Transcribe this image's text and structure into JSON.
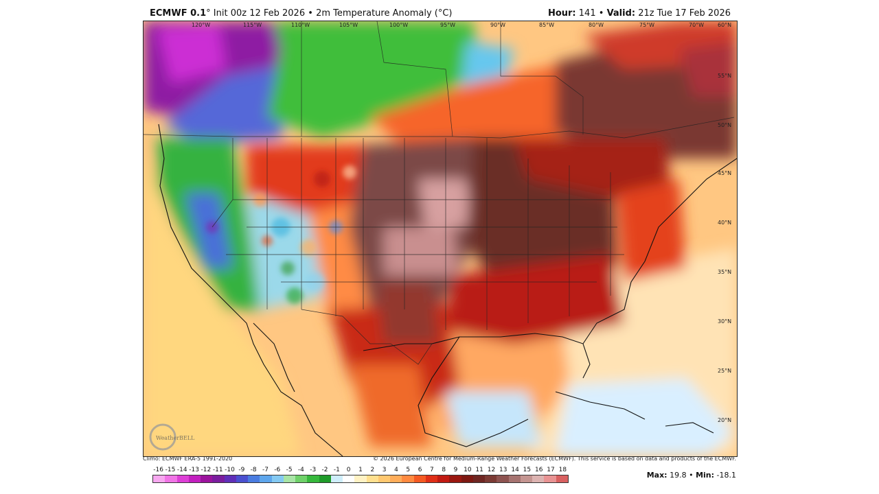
{
  "header": {
    "model": "ECMWF 0.1",
    "degree_symbol": "°",
    "init": "Init 00z 12 Feb 2026",
    "bullet": "•",
    "field": "2m Temperature Anomaly (°C)",
    "hour_label": "Hour:",
    "hour_value": "141",
    "valid_label": "Valid:",
    "valid_value": "21z Tue 17 Feb 2026"
  },
  "map": {
    "lon_labels": [
      "120°W",
      "115°W",
      "110°W",
      "105°W",
      "100°W",
      "95°W",
      "90°W",
      "85°W",
      "80°W",
      "75°W",
      "70°W",
      "60°N"
    ],
    "lat_labels": [
      "55°N",
      "50°N",
      "45°N",
      "40°N",
      "35°N",
      "30°N",
      "25°N",
      "20°N"
    ],
    "logo": "WeatherBELL"
  },
  "footer": {
    "climo": "Climo: ECMWF ERA-5 1991-2020",
    "copyright": "© 2026 European Centre for Medium-Range Weather Forecasts (ECMWF). This service is based on data and products of the ECMWF."
  },
  "colorbar": {
    "labels": [
      "-16",
      "-15",
      "-14",
      "-13",
      "-12",
      "-11",
      "-10",
      "-9",
      "-8",
      "-7",
      "-6",
      "-5",
      "-4",
      "-3",
      "-2",
      "-1",
      "0",
      "1",
      "2",
      "3",
      "4",
      "5",
      "6",
      "7",
      "8",
      "9",
      "10",
      "11",
      "12",
      "13",
      "14",
      "15",
      "16",
      "17",
      "18"
    ],
    "colors": [
      "#f7a8f0",
      "#f075e6",
      "#dd3fd6",
      "#c21fbf",
      "#9b139d",
      "#7a1d9e",
      "#5f2fb8",
      "#4a50cf",
      "#4a7ce0",
      "#5ea6ec",
      "#84c9f2",
      "#a8e4a6",
      "#6fd16a",
      "#36b83c",
      "#1f9b2a",
      "#cfeefb",
      "#ffffff",
      "#fff2c4",
      "#ffe08f",
      "#ffc870",
      "#ffad5a",
      "#ff8a40",
      "#f45a23",
      "#df2f17",
      "#c11a12",
      "#9a1710",
      "#7d1812",
      "#6e2622",
      "#7b3a34",
      "#8d5350",
      "#a67370",
      "#c49591",
      "#dcb3b1",
      "#e89393",
      "#d86060"
    ]
  },
  "stats": {
    "max_label": "Max:",
    "max_value": "19.8",
    "sep": "•",
    "min_label": "Min:",
    "min_value": "-18.1"
  }
}
